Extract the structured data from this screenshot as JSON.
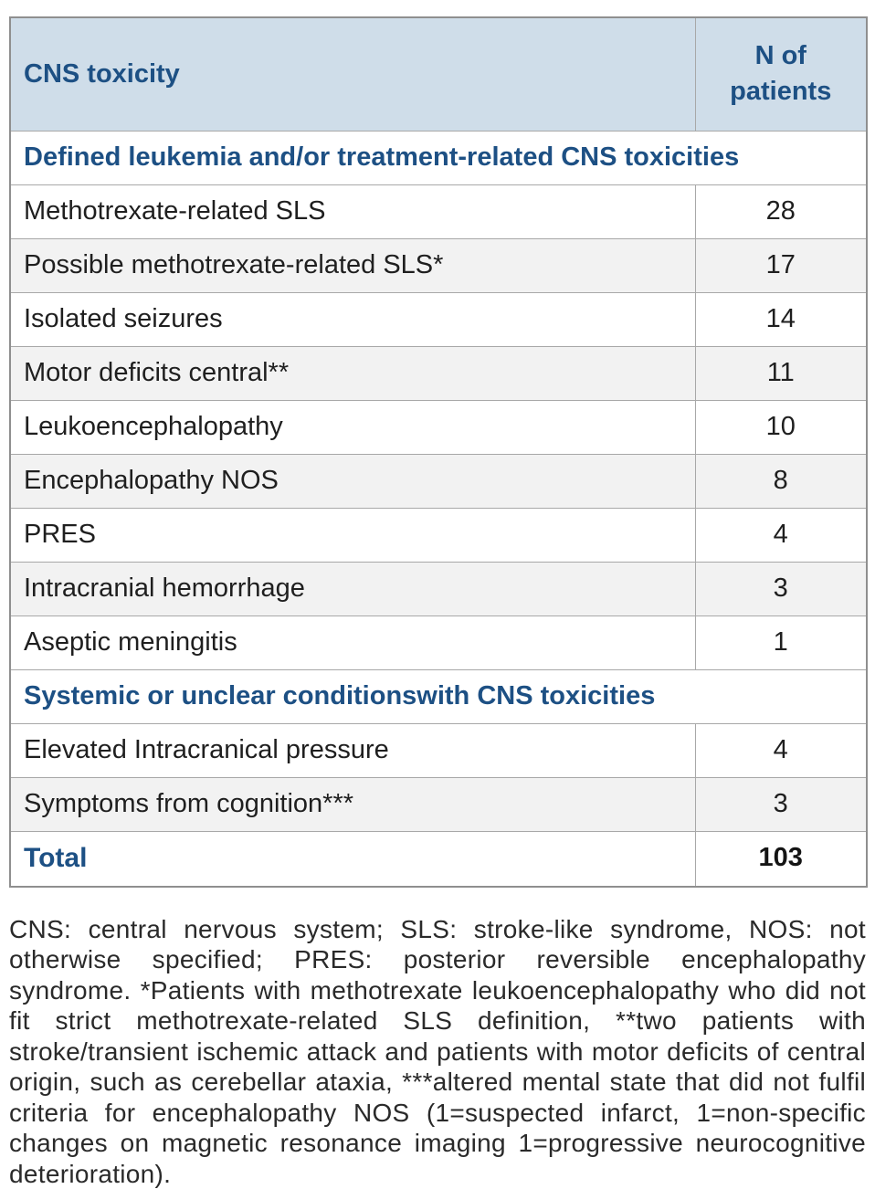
{
  "table": {
    "columns": {
      "toxicity": "CNS toxicity",
      "n_patients": "N of patients"
    },
    "rows": [
      {
        "type": "section",
        "label": "Defined leukemia and/or treatment-related CNS toxicities"
      },
      {
        "type": "data",
        "label": "Methotrexate-related SLS",
        "value": "28",
        "striped": false
      },
      {
        "type": "data",
        "label": "Possible methotrexate-related SLS*",
        "value": "17",
        "striped": true
      },
      {
        "type": "data",
        "label": "Isolated seizures",
        "value": "14",
        "striped": false
      },
      {
        "type": "data",
        "label": "Motor deficits central**",
        "value": "11",
        "striped": true
      },
      {
        "type": "data",
        "label": "Leukoencephalopathy",
        "value": "10",
        "striped": false
      },
      {
        "type": "data",
        "label": "Encephalopathy NOS",
        "value": "8",
        "striped": true
      },
      {
        "type": "data",
        "label": "PRES",
        "value": "4",
        "striped": false
      },
      {
        "type": "data",
        "label": "Intracranial hemorrhage",
        "value": "3",
        "striped": true
      },
      {
        "type": "data",
        "label": "Aseptic meningitis",
        "value": "1",
        "striped": false
      },
      {
        "type": "section",
        "label": "Systemic or unclear conditionswith CNS toxicities"
      },
      {
        "type": "data",
        "label": "Elevated Intracranical pressure",
        "value": "4",
        "striped": false
      },
      {
        "type": "data",
        "label": "Symptoms from cognition***",
        "value": "3",
        "striped": true
      },
      {
        "type": "total",
        "label": "Total",
        "value": "103",
        "striped": false
      }
    ]
  },
  "footnote": "CNS: central nervous system; SLS: stroke-like syndrome, NOS: not otherwise specified; PRES: posterior reversible encephalopathy syndrome. *Patients with methotrexate leukoencephalopathy who did not fit strict methotrexate-related SLS definition, **two patients with stroke/transient ischemic attack and patients with motor deficits of central origin, such as cerebellar ataxia, ***altered mental state that did not fulfil criteria for encephalopathy NOS (1=suspected infarct, 1=non-specific changes on magnetic resonance imaging 1=progressive neurocognitive deterioration).",
  "colors": {
    "header_background": "#cfdde9",
    "accent_blue": "#1d5084",
    "row_stripe": "#f2f2f2",
    "border_gray": "#a8a8a8",
    "body_text": "#1f1f1f"
  }
}
